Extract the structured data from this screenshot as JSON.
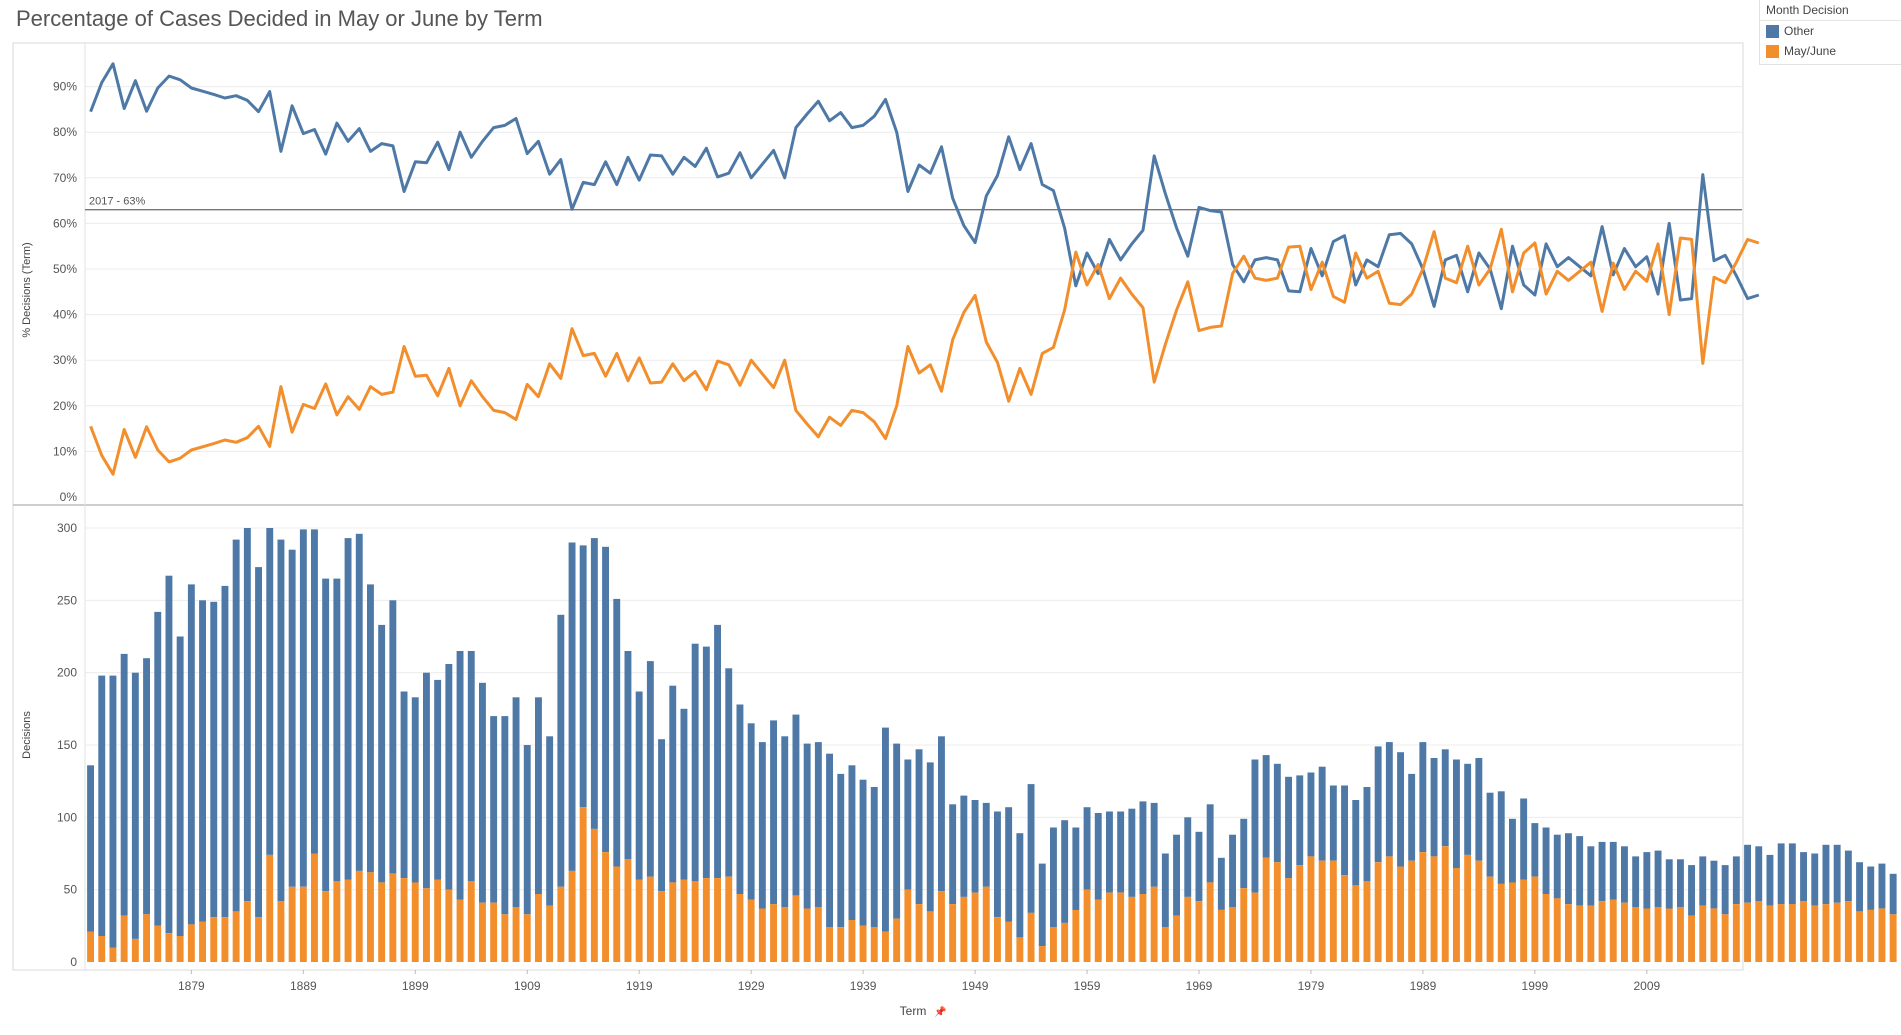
{
  "title": "Percentage of Cases Decided in May or June by Term",
  "legend": {
    "title": "Month Decision",
    "items": [
      {
        "label": "Other",
        "color": "#4e79a7"
      },
      {
        "label": "May/June",
        "color": "#f28e2b"
      }
    ]
  },
  "colors": {
    "other": "#4e79a7",
    "mayjune": "#f28e2b",
    "refline": "#777777",
    "grid": "#ececec",
    "axis": "#999999"
  },
  "x_axis": {
    "label": "Term",
    "pin_icon": "📌",
    "ticks": [
      "1879",
      "1889",
      "1899",
      "1909",
      "1919",
      "1929",
      "1939",
      "1949",
      "1959",
      "1969",
      "1979",
      "1989",
      "1999",
      "2009"
    ]
  },
  "reference_line": {
    "label": "2017 - 63%",
    "value": 63
  },
  "chart_data": [
    {
      "type": "line",
      "title": "% Decisions (Term)",
      "ylabel": "% Decisions (Term)",
      "yticks": [
        "0%",
        "10%",
        "20%",
        "30%",
        "40%",
        "50%",
        "60%",
        "70%",
        "80%",
        "90%"
      ],
      "ylim": [
        0,
        100
      ],
      "x_range": [
        1870,
        2017
      ],
      "series": [
        {
          "name": "Other",
          "values": [
            84.5,
            90.9,
            95.0,
            85.2,
            91.3,
            84.6,
            89.7,
            92.3,
            91.5,
            89.7,
            89.0,
            88.3,
            87.5,
            88.0,
            87.0,
            84.5,
            88.9,
            75.8,
            85.8,
            79.7,
            80.6,
            75.2,
            82.0,
            78.0,
            80.8,
            75.8,
            77.5,
            77.0,
            67.0,
            73.5,
            73.3,
            77.8,
            71.8,
            80.0,
            74.5,
            78.0,
            81.0,
            81.5,
            83.0,
            75.3,
            78.0,
            70.8,
            74.0,
            63.1,
            69.0,
            68.5,
            73.5,
            68.5,
            74.5,
            69.5,
            75.0,
            74.8,
            70.8,
            74.5,
            72.5,
            76.5,
            70.2,
            71.0,
            75.5,
            70.0,
            73.0,
            76.0,
            70.0,
            81.0,
            84.0,
            86.8,
            82.5,
            84.3,
            81.0,
            81.5,
            83.5,
            87.2,
            80.0,
            67.0,
            72.8,
            71.0,
            76.8,
            65.5,
            59.5,
            55.8,
            66.0,
            70.5,
            79.0,
            71.8,
            77.5,
            68.5,
            67.2,
            59.0,
            46.3,
            53.5,
            49.0,
            56.5,
            52.0,
            55.5,
            58.5,
            74.8,
            66.5,
            59.0,
            52.8,
            63.5,
            62.8,
            62.5,
            51.0,
            47.2,
            52.0,
            52.5,
            52.0,
            45.2,
            45.0,
            54.5,
            48.5,
            56.0,
            57.3,
            46.5,
            52.0,
            50.5,
            57.5,
            57.8,
            55.5,
            50.0,
            41.8,
            52.0,
            53.0,
            45.0,
            53.5,
            50.0,
            41.3,
            55.0,
            46.5,
            44.3,
            55.5,
            50.5,
            52.5,
            50.5,
            48.5,
            59.3,
            48.7,
            54.5,
            50.5,
            52.7,
            44.5,
            60.0,
            43.2,
            43.5,
            70.7,
            51.8,
            53.0,
            48.5,
            43.5,
            44.3
          ]
        },
        {
          "name": "May/June",
          "values": [
            15.5,
            9.1,
            5.0,
            14.8,
            8.7,
            15.4,
            10.3,
            7.7,
            8.5,
            10.3,
            11.0,
            11.7,
            12.5,
            12.0,
            13.0,
            15.5,
            11.1,
            24.2,
            14.2,
            20.3,
            19.4,
            24.8,
            18.0,
            22.0,
            19.2,
            24.2,
            22.5,
            23.0,
            33.0,
            26.5,
            26.7,
            22.2,
            28.2,
            20.0,
            25.5,
            22.0,
            19.0,
            18.5,
            17.0,
            24.7,
            22.0,
            29.2,
            26.0,
            36.9,
            31.0,
            31.5,
            26.5,
            31.5,
            25.5,
            30.5,
            25.0,
            25.2,
            29.2,
            25.5,
            27.5,
            23.5,
            29.8,
            29.0,
            24.5,
            30.0,
            27.0,
            24.0,
            30.0,
            19.0,
            16.0,
            13.2,
            17.5,
            15.7,
            19.0,
            18.5,
            16.5,
            12.8,
            20.0,
            33.0,
            27.2,
            29.0,
            23.2,
            34.5,
            40.5,
            44.2,
            34.0,
            29.5,
            21.0,
            28.2,
            22.5,
            31.5,
            32.8,
            41.0,
            53.7,
            46.5,
            51.0,
            43.5,
            48.0,
            44.5,
            41.5,
            25.2,
            33.5,
            41.0,
            47.2,
            36.5,
            37.2,
            37.5,
            49.0,
            52.8,
            48.0,
            47.5,
            48.0,
            54.8,
            55.0,
            45.5,
            51.5,
            44.0,
            42.7,
            53.5,
            48.0,
            49.5,
            42.5,
            42.2,
            44.5,
            50.0,
            58.2,
            48.0,
            47.0,
            55.0,
            46.5,
            50.0,
            58.7,
            45.0,
            53.5,
            55.7,
            44.5,
            49.5,
            47.5,
            49.5,
            51.5,
            40.7,
            51.3,
            45.5,
            49.5,
            47.3,
            55.5,
            40.0,
            56.8,
            56.5,
            29.3,
            48.2,
            47.0,
            51.5,
            56.5,
            55.7
          ]
        }
      ]
    },
    {
      "type": "bar",
      "stacked": true,
      "title": "Decisions",
      "ylabel": "Decisions",
      "yticks": [
        "0",
        "50",
        "100",
        "150",
        "200",
        "250",
        "300"
      ],
      "ylim": [
        0,
        300
      ],
      "x_range": [
        1870,
        2017
      ],
      "series": [
        {
          "name": "May/June",
          "values": [
            21,
            18,
            10,
            32,
            16,
            33,
            25,
            20,
            18,
            26,
            28,
            31,
            31,
            35,
            42,
            31,
            74,
            42,
            52,
            52,
            75,
            49,
            56,
            57,
            63,
            62,
            55,
            61,
            58,
            55,
            51,
            57,
            50,
            43,
            56,
            41,
            41,
            33,
            38,
            33,
            47,
            39,
            52,
            63,
            107,
            92,
            76,
            66,
            71,
            57,
            59,
            49,
            55,
            57,
            56,
            58,
            58,
            59,
            47,
            43,
            37,
            40,
            38,
            46,
            37,
            38,
            24,
            24,
            29,
            25,
            24,
            21,
            30,
            50,
            40,
            35,
            49,
            40,
            45,
            48,
            52,
            31,
            28,
            17,
            34,
            11,
            24,
            27,
            36,
            50,
            43,
            48,
            48,
            45,
            47,
            52,
            24,
            32,
            45,
            42,
            55,
            36,
            38,
            51,
            48,
            72,
            69,
            58,
            67,
            73,
            70,
            70,
            60,
            53,
            56,
            69,
            73,
            66,
            70,
            76,
            73,
            80,
            65,
            74,
            70,
            59,
            54,
            55,
            57,
            59,
            47,
            44,
            40,
            39,
            39,
            42,
            43,
            41,
            38,
            37,
            38,
            37,
            38,
            32,
            39,
            37,
            33,
            40,
            41,
            42,
            39,
            40,
            40,
            42,
            39,
            40,
            41,
            42,
            35,
            36,
            37,
            33
          ]
        },
        {
          "name": "Other",
          "values": [
            115,
            180,
            188,
            181,
            184,
            177,
            217,
            247,
            207,
            235,
            222,
            218,
            229,
            257,
            258,
            242,
            226,
            250,
            233,
            247,
            224,
            216,
            209,
            236,
            233,
            199,
            178,
            189,
            129,
            128,
            149,
            138,
            156,
            172,
            159,
            152,
            129,
            137,
            145,
            117,
            136,
            117,
            188,
            227,
            181,
            201,
            211,
            185,
            144,
            130,
            149,
            105,
            136,
            118,
            164,
            160,
            175,
            144,
            131,
            122,
            115,
            127,
            118,
            125,
            114,
            114,
            120,
            106,
            107,
            101,
            97,
            141,
            121,
            90,
            107,
            103,
            107,
            69,
            70,
            64,
            58,
            73,
            79,
            72,
            89,
            57,
            69,
            71,
            57,
            57,
            60,
            56,
            56,
            61,
            64,
            58,
            51,
            56,
            55,
            48,
            54,
            36,
            50,
            48,
            92,
            71,
            68,
            70,
            62,
            58,
            65,
            52,
            62,
            59,
            65,
            80,
            79,
            79,
            60,
            76,
            68,
            67,
            75,
            63,
            71,
            58,
            64,
            44,
            56,
            37,
            46,
            44,
            49,
            48,
            41,
            41,
            40,
            39,
            35,
            39,
            39,
            34,
            33,
            35,
            34,
            33,
            34,
            33,
            40,
            38,
            35,
            42,
            42,
            34,
            36,
            41,
            40,
            35,
            34,
            30,
            31,
            28
          ]
        }
      ]
    }
  ]
}
